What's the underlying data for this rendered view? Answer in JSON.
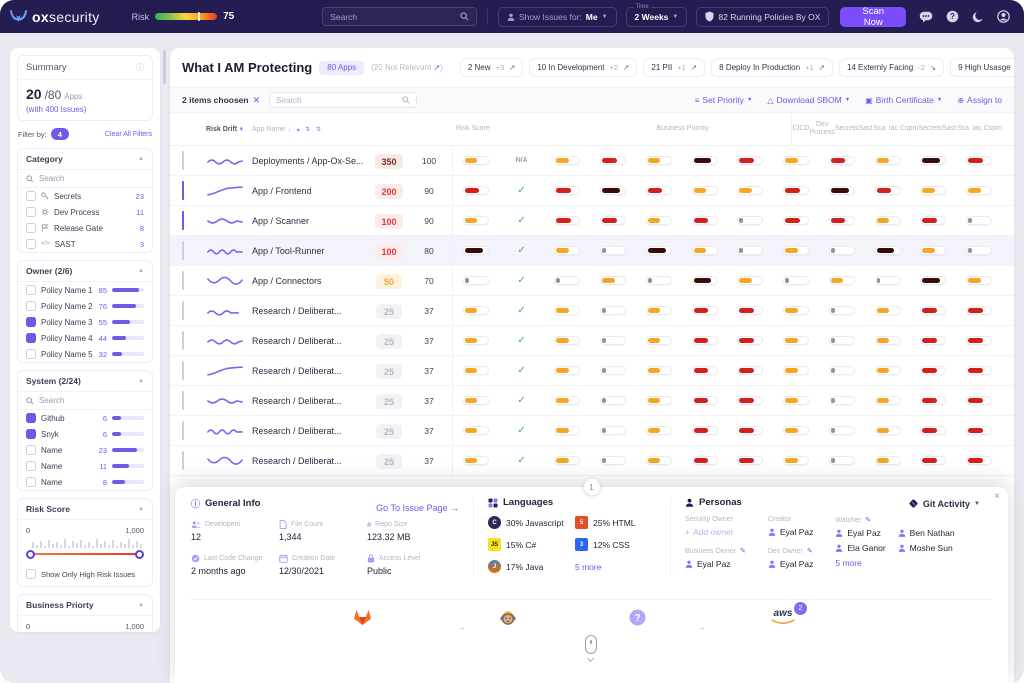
{
  "colors": {
    "navy": "#241d52",
    "accent": "#6e5ae8",
    "scan": "#7b4cfa",
    "orange": "#f5a623",
    "red": "#d4201c",
    "darkred": "#380c08",
    "gray": "#90939f",
    "green": "#47b14b"
  },
  "navbar": {
    "brand_bold": "ox",
    "brand_rest": "security",
    "risk_label": "Risk",
    "risk_value": "75",
    "search_placeholder": "Search",
    "show_issues": {
      "label": "Show Issues for:",
      "value": "Me"
    },
    "time": {
      "label": "Time",
      "value": "2 Weeks"
    },
    "policies": "82 Running Policies By OX",
    "scan": "Scan Now"
  },
  "sidebar": {
    "summary": {
      "title": "Summary",
      "current": "20",
      "total": "/80",
      "apps": "Apps",
      "issues": "(with 400 Issues)"
    },
    "filter": {
      "label": "Filter by:",
      "count": "4",
      "clear": "Clear All Filters"
    },
    "category": {
      "title": "Category",
      "search": "Search",
      "items": [
        {
          "icon": "key",
          "label": "Secrets",
          "count": "23",
          "checked": false
        },
        {
          "icon": "gear",
          "label": "Dev Process",
          "count": "11",
          "checked": false
        },
        {
          "icon": "flag",
          "label": "Release Gate",
          "count": "8",
          "checked": false
        },
        {
          "icon": "code",
          "label": "SAST",
          "count": "3",
          "checked": false
        }
      ]
    },
    "owner": {
      "title": "Owner (2/6)",
      "items": [
        {
          "label": "Policy Name 1",
          "count": "85",
          "bar": 85,
          "checked": false
        },
        {
          "label": "Policy Name 2",
          "count": "76",
          "bar": 76,
          "checked": false
        },
        {
          "label": "Policy Name 3",
          "count": "55",
          "bar": 55,
          "checked": true
        },
        {
          "label": "Policy Name 4",
          "count": "44",
          "bar": 44,
          "checked": true
        },
        {
          "label": "Policy Name 5",
          "count": "32",
          "bar": 32,
          "checked": false
        }
      ]
    },
    "system": {
      "title": "System (2/24)",
      "search": "Search",
      "items": [
        {
          "label": "Github",
          "count": "6",
          "bar": 28,
          "checked": true
        },
        {
          "label": "Snyk",
          "count": "6",
          "bar": 28,
          "checked": true
        },
        {
          "label": "Name",
          "count": "23",
          "bar": 78,
          "checked": false
        },
        {
          "label": "Name",
          "count": "11",
          "bar": 52,
          "checked": false
        },
        {
          "label": "Name",
          "count": "8",
          "bar": 40,
          "checked": false
        }
      ]
    },
    "risk_score": {
      "title": "Risk Score",
      "min": "0",
      "max": "1,000",
      "checkbox": "Show Only High Risk Issues"
    },
    "business_priority": {
      "title": "Business Priorty",
      "min": "0",
      "max": "1,000"
    }
  },
  "main": {
    "title": "What I AM Protecting",
    "apps_badge": "80 Apps",
    "not_relevant": "(20 Not Relevant ",
    "not_relevant_suffix": ")",
    "stats": [
      {
        "label": "2 New",
        "delta": "+3",
        "dir": "up"
      },
      {
        "label": "10 In Development",
        "delta": "+2",
        "dir": "up"
      },
      {
        "label": "21 PII",
        "delta": "+1",
        "dir": "up"
      },
      {
        "label": "8 Deploy In Production",
        "delta": "+1",
        "dir": "up"
      },
      {
        "label": "14 Externly Facing",
        "delta": "-2",
        "dir": "down"
      },
      {
        "label": "9 High Usasge",
        "delta": "+3",
        "dir": "up"
      }
    ],
    "toolbar": {
      "selected": "2 items choosen",
      "search": "Search",
      "actions": [
        {
          "icon": "priority",
          "label": "Set Priority",
          "caret": true
        },
        {
          "icon": "download",
          "label": "Download SBOM",
          "caret": true
        },
        {
          "icon": "certificate",
          "label": "Birth Certificate",
          "caret": true
        },
        {
          "icon": "assign",
          "label": "Assign to",
          "caret": false
        }
      ]
    },
    "table": {
      "headers": {
        "drift": "Risk Drift",
        "name": "App Name",
        "risk": "Risk Score",
        "priority": "Business Priority",
        "cols": [
          "CICD",
          "Dev Process",
          "Secrets",
          "Sast",
          "Sca",
          "Iac",
          "Cspm",
          "Secrets",
          "Sast",
          "Sca",
          "Iac",
          "Cspm"
        ]
      },
      "rows": [
        {
          "name": "Deployments / App-Ox-Se...",
          "risk": "350",
          "risk_style": "maroon",
          "priority": "100",
          "checked": false,
          "highlight": false,
          "cicd": "orange",
          "dev": "na",
          "dev_text": "N/A",
          "pills": [
            "orange",
            "red",
            "orange",
            "dark",
            "red"
          ]
        },
        {
          "name": "App / Frontend",
          "risk": "200",
          "risk_style": "red",
          "priority": "90",
          "checked": true,
          "highlight": false,
          "cicd": "red",
          "dev": "check",
          "pills": [
            "red",
            "dark",
            "red",
            "orange",
            "orange"
          ]
        },
        {
          "name": "App / Scanner",
          "risk": "100",
          "risk_style": "red",
          "priority": "90",
          "checked": true,
          "highlight": false,
          "cicd": "orange",
          "dev": "check",
          "pills": [
            "red",
            "red",
            "orange",
            "red",
            "gray"
          ]
        },
        {
          "name": "App / Tool-Runner",
          "risk": "100",
          "risk_style": "red",
          "priority": "80",
          "checked": false,
          "highlight": true,
          "cicd": "dark",
          "dev": "check",
          "pills": [
            "orange",
            "gray",
            "dark",
            "orange",
            "gray"
          ]
        },
        {
          "name": "App / Connectors",
          "risk": "50",
          "risk_style": "orange",
          "priority": "70",
          "checked": false,
          "highlight": false,
          "cicd": "gray",
          "dev": "check",
          "pills": [
            "gray",
            "orange",
            "gray",
            "dark",
            "orange"
          ]
        },
        {
          "name": "Research / Deliberat...",
          "risk": "25",
          "risk_style": "gray",
          "priority": "37",
          "checked": false,
          "highlight": false,
          "cicd": "orange",
          "dev": "check",
          "pills": [
            "orange",
            "gray",
            "orange",
            "red",
            "red"
          ]
        },
        {
          "name": "Research / Deliberat...",
          "risk": "25",
          "risk_style": "gray",
          "priority": "37",
          "checked": false,
          "highlight": false,
          "cicd": "orange",
          "dev": "check",
          "pills": [
            "orange",
            "gray",
            "orange",
            "red",
            "red"
          ]
        },
        {
          "name": "Research / Deliberat...",
          "risk": "25",
          "risk_style": "gray",
          "priority": "37",
          "checked": false,
          "highlight": false,
          "cicd": "orange",
          "dev": "check",
          "pills": [
            "orange",
            "gray",
            "orange",
            "red",
            "red"
          ]
        },
        {
          "name": "Research / Deliberat...",
          "risk": "25",
          "risk_style": "gray",
          "priority": "37",
          "checked": false,
          "highlight": false,
          "cicd": "orange",
          "dev": "check",
          "pills": [
            "orange",
            "gray",
            "orange",
            "red",
            "red"
          ]
        },
        {
          "name": "Research / Deliberat...",
          "risk": "25",
          "risk_style": "gray",
          "priority": "37",
          "checked": false,
          "highlight": false,
          "cicd": "orange",
          "dev": "check",
          "pills": [
            "orange",
            "gray",
            "orange",
            "red",
            "red"
          ]
        },
        {
          "name": "Research / Deliberat...",
          "risk": "25",
          "risk_style": "gray",
          "priority": "37",
          "checked": false,
          "highlight": false,
          "cicd": "orange",
          "dev": "check",
          "pills": [
            "orange",
            "gray",
            "orange",
            "red",
            "red"
          ]
        }
      ]
    }
  },
  "panel": {
    "handle": "1",
    "general": {
      "title": "General Info",
      "link": "Go To Issue Page →",
      "fields": [
        {
          "icon": "people",
          "label": "Developers",
          "value": "12"
        },
        {
          "icon": "file",
          "label": "File Count",
          "value": "1,344"
        },
        {
          "icon": "hash",
          "label": "Repo Size",
          "value": "123.32 MB"
        },
        {
          "icon": "commit",
          "label": "Last Code Change",
          "value": "2 months ago"
        },
        {
          "icon": "calendar",
          "label": "Creation Date",
          "value": "12/30/2021"
        },
        {
          "icon": "lock",
          "label": "Access Level",
          "value": "Public"
        }
      ]
    },
    "languages": {
      "title": "Languages",
      "items": [
        {
          "badge": "C",
          "style": "js",
          "label": "30% Javascript"
        },
        {
          "badge": "5",
          "style": "html",
          "label": "25% HTML"
        },
        {
          "badge": "JS",
          "style": "csharp",
          "label": "15% C#"
        },
        {
          "badge": "3",
          "style": "css",
          "label": "12% CSS"
        },
        {
          "badge": "J",
          "style": "java",
          "label": "17% Java"
        }
      ],
      "more": "5 more"
    },
    "personas": {
      "title": "Personas",
      "security_owner": {
        "label": "Security Owner",
        "add": "Add owner"
      },
      "creator": {
        "label": "Creator",
        "people": [
          "Eyal Paz"
        ]
      },
      "watcher": {
        "label": "Watcher",
        "editable": true,
        "people": [
          "Eyal Paz",
          "Ben Nathan",
          "Ela Ganor",
          "Moshe Sun"
        ],
        "more": "5 more"
      },
      "business_owner": {
        "label": "Business Owner",
        "editable": true,
        "people": [
          "Eyal Paz"
        ]
      },
      "dev_owner": {
        "label": "Dev Owner",
        "editable": true,
        "people": [
          "Eyal Paz"
        ]
      }
    },
    "git_activity": "Git Activity",
    "integrations": {
      "aws_label": "aws",
      "aws_badge": "2"
    }
  }
}
